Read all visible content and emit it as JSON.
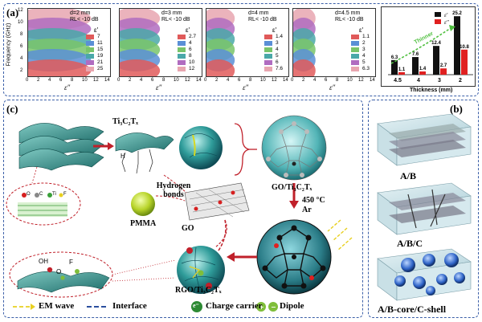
{
  "panel_a": {
    "label": "(a)",
    "yaxis_label": "Frequency (GHz)",
    "yticks": [
      "12",
      "10",
      "8",
      "6",
      "4",
      "2"
    ],
    "xaxis_symbol": "ε″",
    "plots": [
      {
        "d": "d=2 mm",
        "rl": "RL< -10 dB",
        "eps": "ε′",
        "levels": [
          "7",
          "11",
          "15",
          "19",
          "21",
          "25"
        ],
        "xticks": [
          "0",
          "2",
          "4",
          "6",
          "8",
          "10",
          "12",
          "14"
        ],
        "colors": [
          "#e8a6b0",
          "#b06cc0",
          "#4aa8a8",
          "#79c46a",
          "#5a8fd6",
          "#e05a5a"
        ]
      },
      {
        "d": "d=3 mm",
        "rl": "RL< -10 dB",
        "eps": "ε′",
        "levels": [
          "2.7",
          "4",
          "6",
          "8",
          "10",
          "12"
        ],
        "xticks": [
          "0",
          "2",
          "4",
          "6",
          "8",
          "10",
          "12",
          "14"
        ],
        "colors": [
          "#e8a6b0",
          "#b06cc0",
          "#4aa8a8",
          "#79c46a",
          "#5a8fd6",
          "#e05a5a"
        ]
      },
      {
        "d": "d=4 mm",
        "rl": "RL< -10 dB",
        "eps": "ε′",
        "levels": [
          "1.4",
          "3",
          "4",
          "5",
          "6",
          "7.6"
        ],
        "xticks": [
          "0",
          "2",
          "4",
          "6",
          "8",
          "10",
          "12",
          "14"
        ],
        "colors": [
          "#e8a6b0",
          "#b06cc0",
          "#4aa8a8",
          "#79c46a",
          "#5a8fd6",
          "#e05a5a"
        ]
      },
      {
        "d": "d=4.5 mm",
        "rl": "RL< -10 dB",
        "eps": "ε′",
        "levels": [
          "1.1",
          "2",
          "3",
          "4",
          "5",
          "6.3"
        ],
        "xticks": [
          "0",
          "2",
          "4",
          "6",
          "8",
          "10",
          "12",
          "14"
        ],
        "colors": [
          "#e8a6b0",
          "#b06cc0",
          "#4aa8a8",
          "#79c46a",
          "#5a8fd6",
          "#e05a5a"
        ]
      }
    ]
  },
  "chart_data": {
    "type": "bar",
    "categories": [
      "4.5",
      "4",
      "3",
      "2"
    ],
    "series": [
      {
        "name": "ε′",
        "values": [
          6.3,
          7.6,
          12.4,
          25.2
        ],
        "color": "#111111"
      },
      {
        "name": "ε″",
        "values": [
          1.1,
          1.4,
          2.7,
          10.8
        ],
        "color": "#e02020"
      }
    ],
    "bar_labels": [
      [
        "6.3",
        "7.6",
        "12.4",
        "25.2"
      ],
      [
        "1.1",
        "1.4",
        "2.7",
        "10.8"
      ]
    ],
    "xlabel": "Thickness (mm)",
    "trend_label": "Thinner",
    "ylim": [
      0,
      27
    ]
  },
  "panel_c": {
    "label": "(c)",
    "mxene": "Ti₃C₂Tₓ",
    "hbond": "Hydrogen bonds",
    "pmma": "PMMA",
    "go": "GO",
    "go_mx": "GO/Ti₃C₂Tₓ",
    "temp": "450 °C",
    "ar": "Ar",
    "rgo_mx": "RGO/Ti₃C₂Tₓ",
    "atom_legend": [
      "O",
      "C",
      "Ti",
      "F"
    ],
    "group_oh": "OH",
    "group_f": "F",
    "group_o": "O",
    "group_h": "H"
  },
  "panel_b": {
    "label": "(b)",
    "items": [
      "A/B",
      "A/B/C",
      "A/B-core/C-shell"
    ]
  },
  "legend": {
    "em_wave": "EM wave",
    "interface": "Interface",
    "charge_symbol": "e⁻",
    "charge": "Charge carrier",
    "dipole": "Dipole"
  }
}
